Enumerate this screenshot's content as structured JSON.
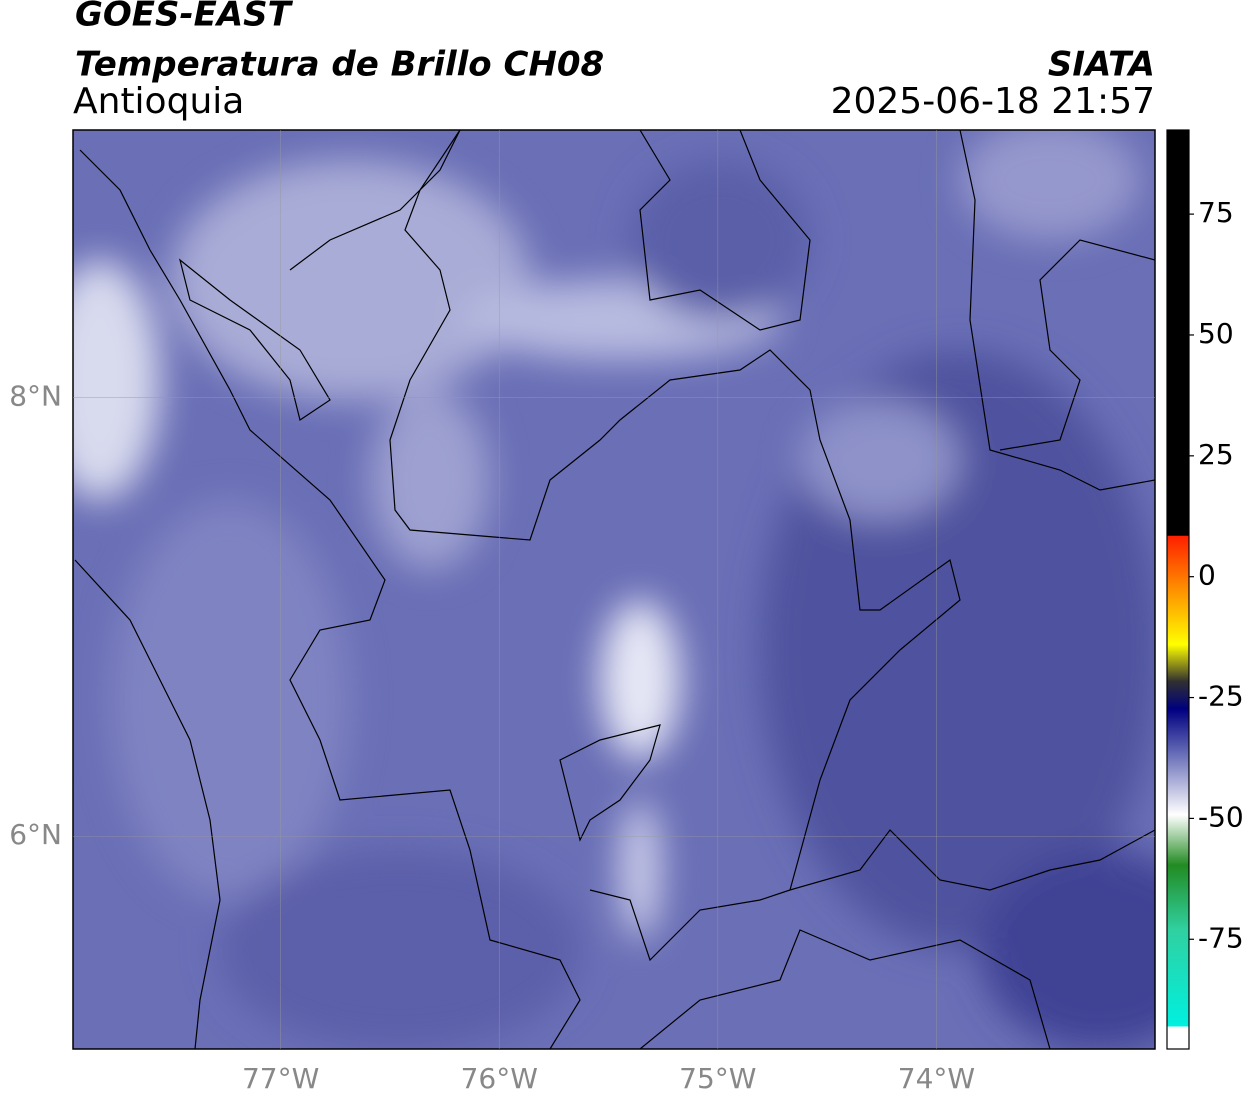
{
  "header": {
    "satellite": "GOES-EAST",
    "product": "Temperatura de Brillo CH08",
    "region": "Antioquia",
    "agency": "SIATA",
    "datetime": "2025-06-18 21:57"
  },
  "map": {
    "lon_range": [
      -77.95,
      -73.0
    ],
    "lat_range": [
      5.03,
      9.22
    ],
    "lon_ticks": [
      {
        "value": -77,
        "label": "77°W"
      },
      {
        "value": -76,
        "label": "76°W"
      },
      {
        "value": -75,
        "label": "75°W"
      },
      {
        "value": -74,
        "label": "74°W"
      }
    ],
    "lat_ticks": [
      {
        "value": 8,
        "label": "8°N"
      },
      {
        "value": 6,
        "label": "6°N"
      }
    ]
  },
  "colorbar": {
    "range": [
      -97.7,
      92.4
    ],
    "ticks": [
      75,
      50,
      25,
      0,
      -25,
      -50,
      -75
    ]
  }
}
